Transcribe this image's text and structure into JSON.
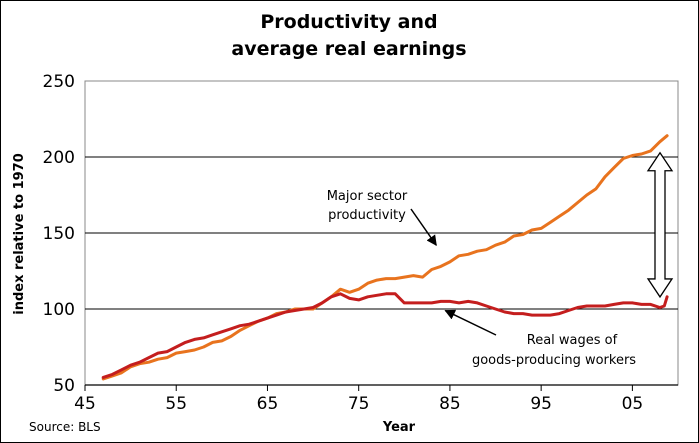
{
  "chart_data": {
    "type": "line",
    "title_lines": [
      "Productivity and",
      "average real earnings"
    ],
    "xlabel": "Year",
    "ylabel": "index relative to 1970",
    "xlim": [
      1945,
      2010
    ],
    "ylim": [
      50,
      250
    ],
    "y_ticks": [
      50,
      100,
      150,
      200,
      250
    ],
    "x_ticks": [
      {
        "value": 1945,
        "label": "45"
      },
      {
        "value": 1955,
        "label": "55"
      },
      {
        "value": 1965,
        "label": "65"
      },
      {
        "value": 1975,
        "label": "75"
      },
      {
        "value": 1985,
        "label": "85"
      },
      {
        "value": 1995,
        "label": "95"
      },
      {
        "value": 2005,
        "label": "05"
      }
    ],
    "horizontal_grid": true,
    "series": [
      {
        "name": "Major sector productivity",
        "color": "#e8731e",
        "x": [
          1947,
          1948,
          1949,
          1950,
          1951,
          1952,
          1953,
          1954,
          1955,
          1956,
          1957,
          1958,
          1959,
          1960,
          1961,
          1962,
          1963,
          1964,
          1965,
          1966,
          1967,
          1968,
          1969,
          1970,
          1971,
          1972,
          1973,
          1974,
          1975,
          1976,
          1977,
          1978,
          1979,
          1980,
          1981,
          1982,
          1983,
          1984,
          1985,
          1986,
          1987,
          1988,
          1989,
          1990,
          1991,
          1992,
          1993,
          1994,
          1995,
          1996,
          1997,
          1998,
          1999,
          2000,
          2001,
          2002,
          2003,
          2004,
          2005,
          2006,
          2007,
          2008,
          2008.8
        ],
        "y": [
          54,
          56,
          58,
          62,
          64,
          65,
          67,
          68,
          71,
          72,
          73,
          75,
          78,
          79,
          82,
          86,
          89,
          92,
          94,
          97,
          98,
          100,
          100,
          100,
          104,
          108,
          113,
          111,
          113,
          117,
          119,
          120,
          120,
          121,
          122,
          121,
          126,
          128,
          131,
          135,
          136,
          138,
          139,
          142,
          144,
          148,
          149,
          152,
          153,
          157,
          161,
          165,
          170,
          175,
          179,
          187,
          193,
          199,
          201,
          202,
          204,
          210,
          214
        ]
      },
      {
        "name": "Real wages of goods-producing workers",
        "color": "#c41e1e",
        "x": [
          1947,
          1948,
          1949,
          1950,
          1951,
          1952,
          1953,
          1954,
          1955,
          1956,
          1957,
          1958,
          1959,
          1960,
          1961,
          1962,
          1963,
          1964,
          1965,
          1966,
          1967,
          1968,
          1969,
          1970,
          1971,
          1972,
          1973,
          1974,
          1975,
          1976,
          1977,
          1978,
          1979,
          1980,
          1981,
          1982,
          1983,
          1984,
          1985,
          1986,
          1987,
          1988,
          1989,
          1990,
          1991,
          1992,
          1993,
          1994,
          1995,
          1996,
          1997,
          1998,
          1999,
          2000,
          2001,
          2002,
          2003,
          2004,
          2005,
          2006,
          2007,
          2008,
          2008.5,
          2008.8
        ],
        "y": [
          55,
          57,
          60,
          63,
          65,
          68,
          71,
          72,
          75,
          78,
          80,
          81,
          83,
          85,
          87,
          89,
          90,
          92,
          94,
          96,
          98,
          99,
          100,
          101,
          104,
          108,
          110,
          107,
          106,
          108,
          109,
          110,
          110,
          104,
          104,
          104,
          104,
          105,
          105,
          104,
          105,
          104,
          102,
          100,
          98,
          97,
          97,
          96,
          96,
          96,
          97,
          99,
          101,
          102,
          102,
          102,
          103,
          104,
          104,
          103,
          103,
          101,
          102,
          108
        ]
      }
    ],
    "annotations": [
      {
        "lines": [
          "Major sector",
          "productivity"
        ],
        "points_to": [
          1983.5,
          142
        ]
      },
      {
        "lines": [
          "Real wages of",
          "goods-producing workers"
        ],
        "points_to": [
          1984.5,
          99
        ]
      }
    ],
    "gap_arrow": {
      "direction": "vertical, double-headed",
      "span": [
        104,
        212
      ]
    },
    "source": "Source: BLS"
  }
}
